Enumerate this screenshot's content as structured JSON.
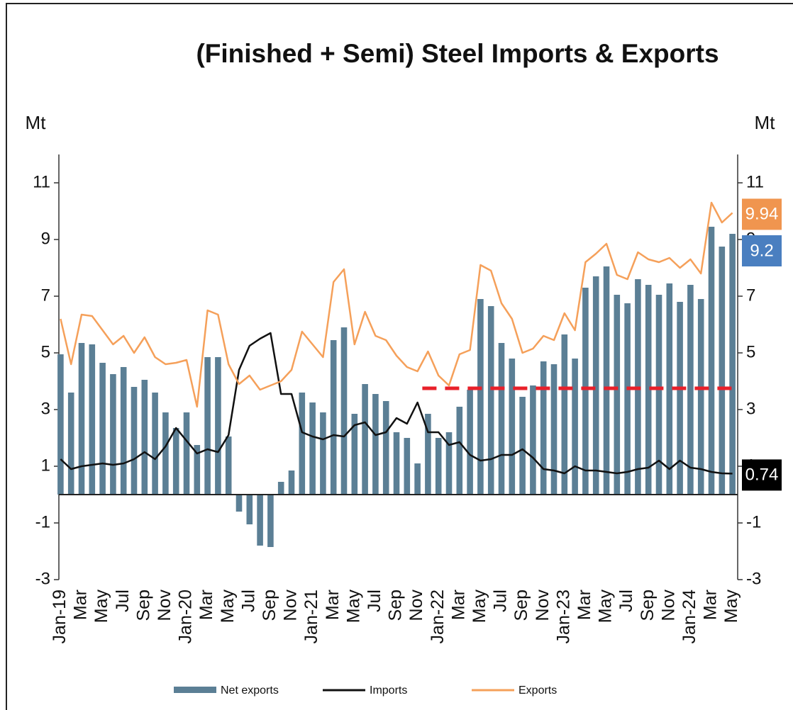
{
  "chart_data": {
    "type": "bar_line",
    "title": "(Finished + Semi) Steel Imports & Exports",
    "y_label": "Mt",
    "y2_label": "Mt",
    "categories": [
      "Jan-19",
      null,
      "Mar",
      null,
      "May",
      null,
      "Jul",
      null,
      "Sep",
      null,
      "Nov",
      null,
      "Jan-20",
      null,
      "Mar",
      null,
      "May",
      null,
      "Jul",
      null,
      "Sep",
      null,
      "Nov",
      null,
      "Jan-21",
      null,
      "Mar",
      null,
      "May",
      null,
      "Jul",
      null,
      "Sep",
      null,
      "Nov",
      null,
      "Jan-22",
      null,
      "Mar",
      null,
      "May",
      null,
      "Jul",
      null,
      "Sep",
      null,
      "Nov",
      null,
      "Jan-23",
      null,
      "Mar",
      null,
      "May",
      null,
      "Jul",
      null,
      "Sep",
      null,
      "Nov",
      null,
      "Jan-24",
      null,
      "Mar",
      null,
      "May"
    ],
    "series": [
      {
        "name": "Net exports",
        "kind": "bar",
        "color": "#5b7f95",
        "label_color": "#4a7fc0",
        "end_label": true,
        "values": [
          4.95,
          3.6,
          5.35,
          5.3,
          4.65,
          4.25,
          4.5,
          3.8,
          4.05,
          3.6,
          2.9,
          2.35,
          2.9,
          1.75,
          4.85,
          4.85,
          2.05,
          -0.6,
          -1.05,
          -1.8,
          -1.85,
          0.45,
          0.85,
          3.6,
          3.25,
          2.9,
          5.45,
          5.9,
          2.85,
          3.9,
          3.55,
          3.3,
          2.2,
          2.0,
          1.1,
          2.85,
          2.0,
          2.2,
          3.1,
          3.7,
          6.9,
          6.65,
          5.35,
          4.8,
          3.45,
          3.85,
          4.7,
          4.6,
          5.65,
          4.8,
          7.3,
          7.7,
          8.05,
          7.05,
          6.75,
          7.6,
          7.4,
          7.05,
          7.45,
          6.8,
          7.4,
          6.9,
          9.45,
          8.75,
          9.2
        ]
      },
      {
        "name": "Imports",
        "kind": "line",
        "color": "#111111",
        "label_color": "#000000",
        "end_label": true,
        "values": [
          1.25,
          0.9,
          1.0,
          1.05,
          1.1,
          1.05,
          1.1,
          1.25,
          1.5,
          1.25,
          1.7,
          2.35,
          1.9,
          1.45,
          1.6,
          1.5,
          2.1,
          4.4,
          5.25,
          5.5,
          5.7,
          3.55,
          3.55,
          2.2,
          2.05,
          1.95,
          2.1,
          2.05,
          2.45,
          2.55,
          2.1,
          2.2,
          2.7,
          2.5,
          3.25,
          2.2,
          2.2,
          1.75,
          1.85,
          1.4,
          1.2,
          1.25,
          1.4,
          1.4,
          1.6,
          1.3,
          0.9,
          0.85,
          0.75,
          1.0,
          0.85,
          0.85,
          0.8,
          0.75,
          0.8,
          0.9,
          0.95,
          1.2,
          0.9,
          1.2,
          0.95,
          0.9,
          0.8,
          0.75,
          0.74
        ]
      },
      {
        "name": "Exports",
        "kind": "line",
        "color": "#f5a05a",
        "label_color": "#f0954f",
        "end_label": true,
        "values": [
          6.2,
          4.6,
          6.35,
          6.3,
          5.8,
          5.3,
          5.6,
          5.0,
          5.55,
          4.85,
          4.6,
          4.65,
          4.75,
          3.1,
          6.5,
          6.35,
          4.6,
          3.9,
          4.2,
          3.7,
          3.85,
          4.0,
          4.4,
          5.75,
          5.3,
          4.85,
          7.5,
          7.95,
          5.3,
          6.45,
          5.6,
          5.45,
          4.9,
          4.5,
          4.35,
          5.05,
          4.2,
          3.85,
          4.95,
          5.1,
          8.1,
          7.9,
          6.75,
          6.2,
          5.0,
          5.15,
          5.6,
          5.45,
          6.4,
          5.8,
          8.2,
          8.5,
          8.85,
          7.75,
          7.6,
          8.55,
          8.3,
          8.2,
          8.35,
          8.0,
          8.3,
          7.8,
          10.3,
          9.6,
          9.94
        ]
      }
    ],
    "reference_line": {
      "value": 3.75,
      "color": "#e8202a"
    },
    "ylim": [
      -3,
      12
    ],
    "yticks": [
      -3,
      -1,
      1,
      3,
      5,
      7,
      9,
      11
    ],
    "y2lim": [
      -3,
      12
    ],
    "y2ticks": [
      -3,
      -1,
      1,
      3,
      5,
      7,
      9,
      11
    ],
    "legend": "bottom"
  }
}
